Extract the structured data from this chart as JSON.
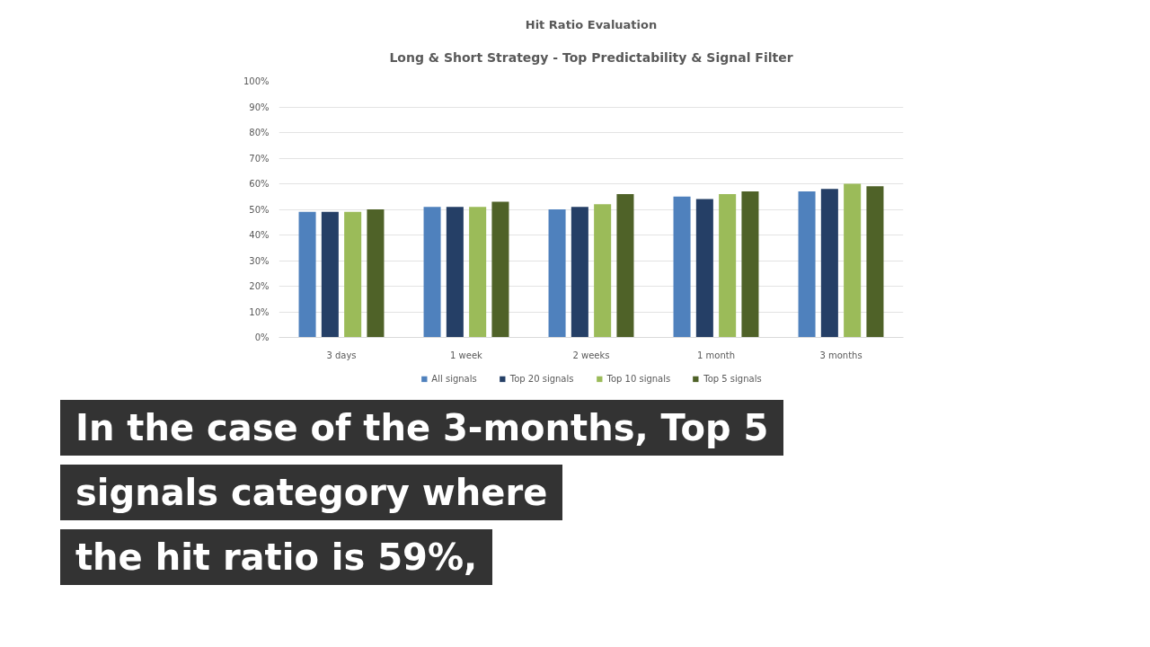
{
  "chart_data": {
    "type": "bar",
    "title": "Hit Ratio Evaluation",
    "subtitle": "Long & Short Strategy - Top Predictability & Signal Filter",
    "categories": [
      "3 days",
      "1 week",
      "2 weeks",
      "1 month",
      "3 months"
    ],
    "series": [
      {
        "name": "All signals",
        "color": "#4f81bd",
        "values": [
          49,
          51,
          50,
          55,
          57
        ]
      },
      {
        "name": "Top 20 signals",
        "color": "#253f66",
        "values": [
          49,
          51,
          51,
          54,
          58
        ]
      },
      {
        "name": "Top 10 signals",
        "color": "#9bbb59",
        "values": [
          49,
          51,
          52,
          56,
          60
        ]
      },
      {
        "name": "Top 5 signals",
        "color": "#4f6228",
        "values": [
          50,
          53,
          56,
          57,
          59
        ]
      }
    ],
    "ylim": [
      0,
      100
    ],
    "yticks": [
      {
        "value": 0,
        "label": "0%"
      },
      {
        "value": 10,
        "label": "10%"
      },
      {
        "value": 20,
        "label": "20%"
      },
      {
        "value": 30,
        "label": "30%"
      },
      {
        "value": 40,
        "label": "40%"
      },
      {
        "value": 50,
        "label": "50%"
      },
      {
        "value": 60,
        "label": "60%"
      },
      {
        "value": 70,
        "label": "70%"
      },
      {
        "value": 80,
        "label": "80%"
      },
      {
        "value": 90,
        "label": "90%"
      },
      {
        "value": 100,
        "label": "100%"
      }
    ],
    "grid": "y",
    "legend": "bottom",
    "annotations": [
      "In the case of the 3-months, Top 5",
      "signals category where",
      "the hit ratio is 59%,"
    ]
  }
}
